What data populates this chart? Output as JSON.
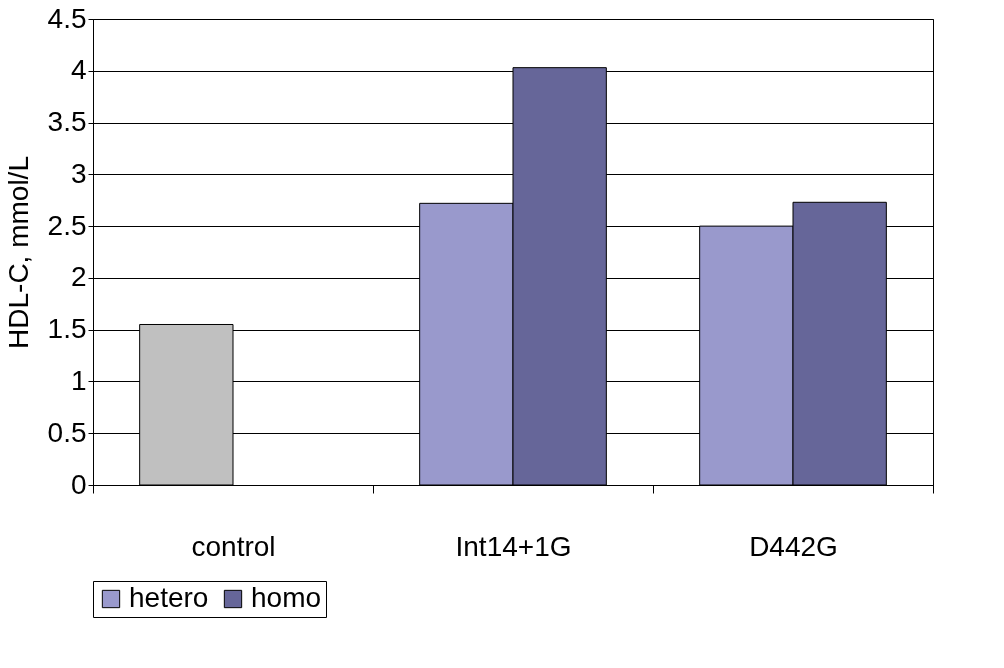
{
  "chart_data": {
    "type": "bar",
    "ylabel": "HDL-C, mmol/L",
    "categories": [
      "control",
      "Int14+1G",
      "D442G"
    ],
    "series": [
      {
        "name": "hetero",
        "color": "#9999cc",
        "colors": [
          "#c0c0c0",
          "#9999cc",
          "#9999cc"
        ],
        "values": [
          1.55,
          2.72,
          2.5
        ]
      },
      {
        "name": "homo",
        "color": "#666699",
        "values": [
          null,
          4.03,
          2.73
        ]
      }
    ],
    "ylim": [
      0,
      4.5
    ],
    "yticks": [
      0,
      0.5,
      1,
      1.5,
      2,
      2.5,
      3,
      3.5,
      4,
      4.5
    ],
    "grid": "y",
    "legend": "bottom"
  }
}
